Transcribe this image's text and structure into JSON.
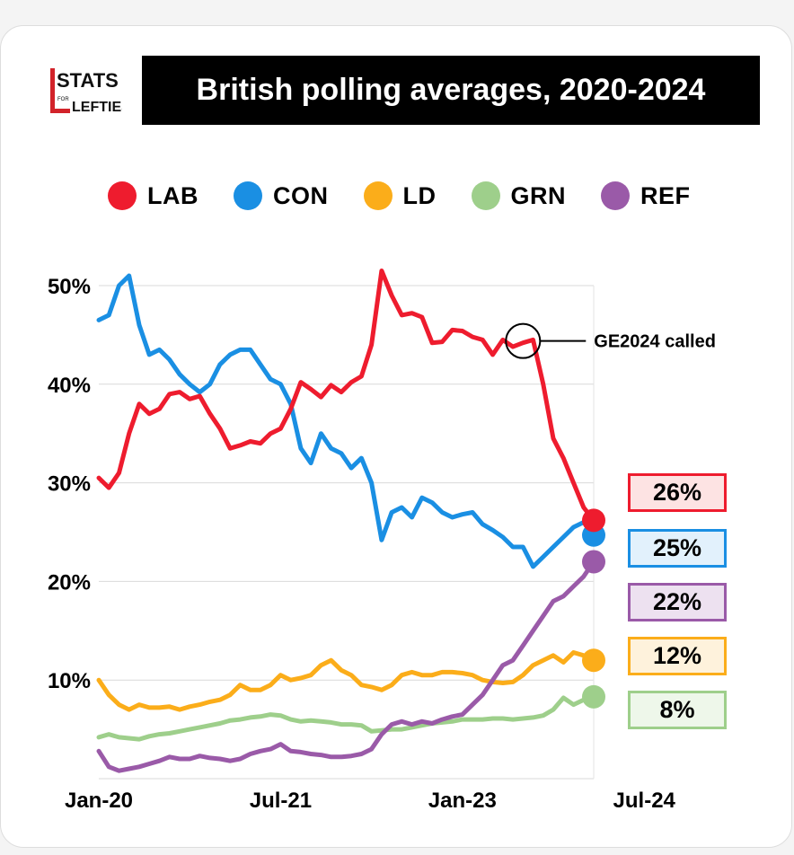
{
  "logo": {
    "line1": "STATS",
    "small": "FOR",
    "line2": "LEFTIES"
  },
  "title": "British polling averages, 2020-2024",
  "colors": {
    "LAB": "#ee1c2e",
    "CON": "#1a8fe3",
    "LD": "#fbad1a",
    "GRN": "#9ecf8b",
    "REF": "#9a5aa8"
  },
  "legend": [
    {
      "key": "LAB",
      "label": "LAB"
    },
    {
      "key": "CON",
      "label": "CON"
    },
    {
      "key": "LD",
      "label": "LD"
    },
    {
      "key": "GRN",
      "label": "GRN"
    },
    {
      "key": "REF",
      "label": "REF"
    }
  ],
  "chart_data": {
    "type": "line",
    "title": "British polling averages, 2020-2024",
    "x_start": "Jan-20",
    "x_end": "Jul-24",
    "x_ticks": [
      {
        "label": "Jan-20",
        "month": 0
      },
      {
        "label": "Jul-21",
        "month": 18
      },
      {
        "label": "Jan-23",
        "month": 36
      },
      {
        "label": "Jul-24",
        "month": 54
      }
    ],
    "y_ticks": [
      {
        "label": "10%",
        "value": 10
      },
      {
        "label": "20%",
        "value": 20
      },
      {
        "label": "30%",
        "value": 30
      },
      {
        "label": "40%",
        "value": 40
      },
      {
        "label": "50%",
        "value": 50
      }
    ],
    "ylim": [
      0,
      50
    ],
    "grid": true,
    "legend_position": "top",
    "series": [
      {
        "key": "LAB",
        "name": "LAB",
        "end_label": "26%",
        "points": [
          [
            0,
            30.5
          ],
          [
            1,
            29.5
          ],
          [
            2,
            31
          ],
          [
            3,
            35
          ],
          [
            4,
            38
          ],
          [
            5,
            37
          ],
          [
            6,
            37.5
          ],
          [
            7,
            39
          ],
          [
            8,
            39.2
          ],
          [
            9,
            38.5
          ],
          [
            10,
            38.8
          ],
          [
            11,
            37
          ],
          [
            12,
            35.5
          ],
          [
            13,
            33.5
          ],
          [
            14,
            33.8
          ],
          [
            15,
            34.2
          ],
          [
            16,
            34
          ],
          [
            17,
            35
          ],
          [
            18,
            35.5
          ],
          [
            19,
            37.5
          ],
          [
            20,
            40.2
          ],
          [
            21,
            39.5
          ],
          [
            22,
            38.7
          ],
          [
            23,
            39.9
          ],
          [
            24,
            39.2
          ],
          [
            25,
            40.2
          ],
          [
            26,
            40.8
          ],
          [
            27,
            44
          ],
          [
            28,
            51.5
          ],
          [
            29,
            49
          ],
          [
            30,
            47
          ],
          [
            31,
            47.2
          ],
          [
            32,
            46.8
          ],
          [
            33,
            44.2
          ],
          [
            34,
            44.3
          ],
          [
            35,
            45.5
          ],
          [
            36,
            45.4
          ],
          [
            37,
            44.8
          ],
          [
            38,
            44.5
          ],
          [
            39,
            43
          ],
          [
            40,
            44.5
          ],
          [
            41,
            43.8
          ],
          [
            42,
            44.2
          ],
          [
            43,
            44.5
          ],
          [
            44,
            40
          ],
          [
            45,
            34.5
          ],
          [
            46,
            32.5
          ],
          [
            47,
            30
          ],
          [
            48,
            27.5
          ],
          [
            49,
            26.2
          ]
        ]
      },
      {
        "key": "CON",
        "name": "CON",
        "end_label": "25%",
        "points": [
          [
            0,
            46.5
          ],
          [
            1,
            47
          ],
          [
            2,
            50
          ],
          [
            3,
            51
          ],
          [
            4,
            46
          ],
          [
            5,
            43
          ],
          [
            6,
            43.5
          ],
          [
            7,
            42.5
          ],
          [
            8,
            41
          ],
          [
            9,
            40
          ],
          [
            10,
            39.2
          ],
          [
            11,
            40
          ],
          [
            12,
            42
          ],
          [
            13,
            43
          ],
          [
            14,
            43.5
          ],
          [
            15,
            43.5
          ],
          [
            16,
            42
          ],
          [
            17,
            40.5
          ],
          [
            18,
            40
          ],
          [
            19,
            38
          ],
          [
            20,
            33.5
          ],
          [
            21,
            32
          ],
          [
            22,
            35
          ],
          [
            23,
            33.5
          ],
          [
            24,
            33
          ],
          [
            25,
            31.5
          ],
          [
            26,
            32.5
          ],
          [
            27,
            30
          ],
          [
            28,
            24.2
          ],
          [
            29,
            27
          ],
          [
            30,
            27.5
          ],
          [
            31,
            26.5
          ],
          [
            32,
            28.5
          ],
          [
            33,
            28
          ],
          [
            34,
            27
          ],
          [
            35,
            26.5
          ],
          [
            36,
            26.8
          ],
          [
            37,
            27
          ],
          [
            38,
            25.8
          ],
          [
            39,
            25.2
          ],
          [
            40,
            24.5
          ],
          [
            41,
            23.5
          ],
          [
            42,
            23.5
          ],
          [
            43,
            21.5
          ],
          [
            44,
            22.5
          ],
          [
            45,
            23.5
          ],
          [
            46,
            24.5
          ],
          [
            47,
            25.5
          ],
          [
            48,
            26
          ],
          [
            49,
            24.7
          ]
        ]
      },
      {
        "key": "LD",
        "name": "LD",
        "end_label": "12%",
        "points": [
          [
            0,
            10
          ],
          [
            1,
            8.5
          ],
          [
            2,
            7.5
          ],
          [
            3,
            7
          ],
          [
            4,
            7.5
          ],
          [
            5,
            7.2
          ],
          [
            6,
            7.2
          ],
          [
            7,
            7.3
          ],
          [
            8,
            7
          ],
          [
            9,
            7.3
          ],
          [
            10,
            7.5
          ],
          [
            11,
            7.8
          ],
          [
            12,
            8
          ],
          [
            13,
            8.5
          ],
          [
            14,
            9.5
          ],
          [
            15,
            9
          ],
          [
            16,
            9
          ],
          [
            17,
            9.5
          ],
          [
            18,
            10.5
          ],
          [
            19,
            10
          ],
          [
            20,
            10.2
          ],
          [
            21,
            10.5
          ],
          [
            22,
            11.5
          ],
          [
            23,
            12
          ],
          [
            24,
            11
          ],
          [
            25,
            10.5
          ],
          [
            26,
            9.5
          ],
          [
            27,
            9.3
          ],
          [
            28,
            9
          ],
          [
            29,
            9.5
          ],
          [
            30,
            10.5
          ],
          [
            31,
            10.8
          ],
          [
            32,
            10.5
          ],
          [
            33,
            10.5
          ],
          [
            34,
            10.8
          ],
          [
            35,
            10.8
          ],
          [
            36,
            10.7
          ],
          [
            37,
            10.5
          ],
          [
            38,
            10
          ],
          [
            39,
            9.8
          ],
          [
            40,
            9.7
          ],
          [
            41,
            9.8
          ],
          [
            42,
            10.5
          ],
          [
            43,
            11.5
          ],
          [
            44,
            12
          ],
          [
            45,
            12.5
          ],
          [
            46,
            11.8
          ],
          [
            47,
            12.8
          ],
          [
            48,
            12.5
          ],
          [
            49,
            12
          ]
        ]
      },
      {
        "key": "GRN",
        "name": "GRN",
        "end_label": "8%",
        "points": [
          [
            0,
            4.2
          ],
          [
            1,
            4.5
          ],
          [
            2,
            4.2
          ],
          [
            3,
            4.1
          ],
          [
            4,
            4
          ],
          [
            5,
            4.3
          ],
          [
            6,
            4.5
          ],
          [
            7,
            4.6
          ],
          [
            8,
            4.8
          ],
          [
            9,
            5
          ],
          [
            10,
            5.2
          ],
          [
            11,
            5.4
          ],
          [
            12,
            5.6
          ],
          [
            13,
            5.9
          ],
          [
            14,
            6
          ],
          [
            15,
            6.2
          ],
          [
            16,
            6.3
          ],
          [
            17,
            6.5
          ],
          [
            18,
            6.4
          ],
          [
            19,
            6
          ],
          [
            20,
            5.8
          ],
          [
            21,
            5.9
          ],
          [
            22,
            5.8
          ],
          [
            23,
            5.7
          ],
          [
            24,
            5.5
          ],
          [
            25,
            5.5
          ],
          [
            26,
            5.4
          ],
          [
            27,
            4.8
          ],
          [
            28,
            4.9
          ],
          [
            29,
            5
          ],
          [
            30,
            5
          ],
          [
            31,
            5.2
          ],
          [
            32,
            5.4
          ],
          [
            33,
            5.6
          ],
          [
            34,
            5.7
          ],
          [
            35,
            5.8
          ],
          [
            36,
            6
          ],
          [
            37,
            6
          ],
          [
            38,
            6
          ],
          [
            39,
            6.1
          ],
          [
            40,
            6.1
          ],
          [
            41,
            6
          ],
          [
            42,
            6.1
          ],
          [
            43,
            6.2
          ],
          [
            44,
            6.4
          ],
          [
            45,
            7
          ],
          [
            46,
            8.2
          ],
          [
            47,
            7.5
          ],
          [
            48,
            8
          ],
          [
            49,
            8.3
          ]
        ]
      },
      {
        "key": "REF",
        "name": "REF",
        "end_label": "22%",
        "points": [
          [
            0,
            2.8
          ],
          [
            1,
            1.2
          ],
          [
            2,
            0.8
          ],
          [
            3,
            1
          ],
          [
            4,
            1.2
          ],
          [
            5,
            1.5
          ],
          [
            6,
            1.8
          ],
          [
            7,
            2.2
          ],
          [
            8,
            2
          ],
          [
            9,
            2
          ],
          [
            10,
            2.3
          ],
          [
            11,
            2.1
          ],
          [
            12,
            2
          ],
          [
            13,
            1.8
          ],
          [
            14,
            2
          ],
          [
            15,
            2.5
          ],
          [
            16,
            2.8
          ],
          [
            17,
            3
          ],
          [
            18,
            3.5
          ],
          [
            19,
            2.8
          ],
          [
            20,
            2.7
          ],
          [
            21,
            2.5
          ],
          [
            22,
            2.4
          ],
          [
            23,
            2.2
          ],
          [
            24,
            2.2
          ],
          [
            25,
            2.3
          ],
          [
            26,
            2.5
          ],
          [
            27,
            3
          ],
          [
            28,
            4.5
          ],
          [
            29,
            5.5
          ],
          [
            30,
            5.8
          ],
          [
            31,
            5.5
          ],
          [
            32,
            5.8
          ],
          [
            33,
            5.6
          ],
          [
            34,
            6
          ],
          [
            35,
            6.3
          ],
          [
            36,
            6.5
          ],
          [
            37,
            7.5
          ],
          [
            38,
            8.5
          ],
          [
            39,
            10
          ],
          [
            40,
            11.5
          ],
          [
            41,
            12
          ],
          [
            42,
            13.5
          ],
          [
            43,
            15
          ],
          [
            44,
            16.5
          ],
          [
            45,
            18
          ],
          [
            46,
            18.5
          ],
          [
            47,
            19.5
          ],
          [
            48,
            20.5
          ],
          [
            49,
            22
          ]
        ]
      }
    ],
    "annotation": {
      "text": "GE2024 called",
      "month": 42,
      "value": 44.2
    }
  }
}
